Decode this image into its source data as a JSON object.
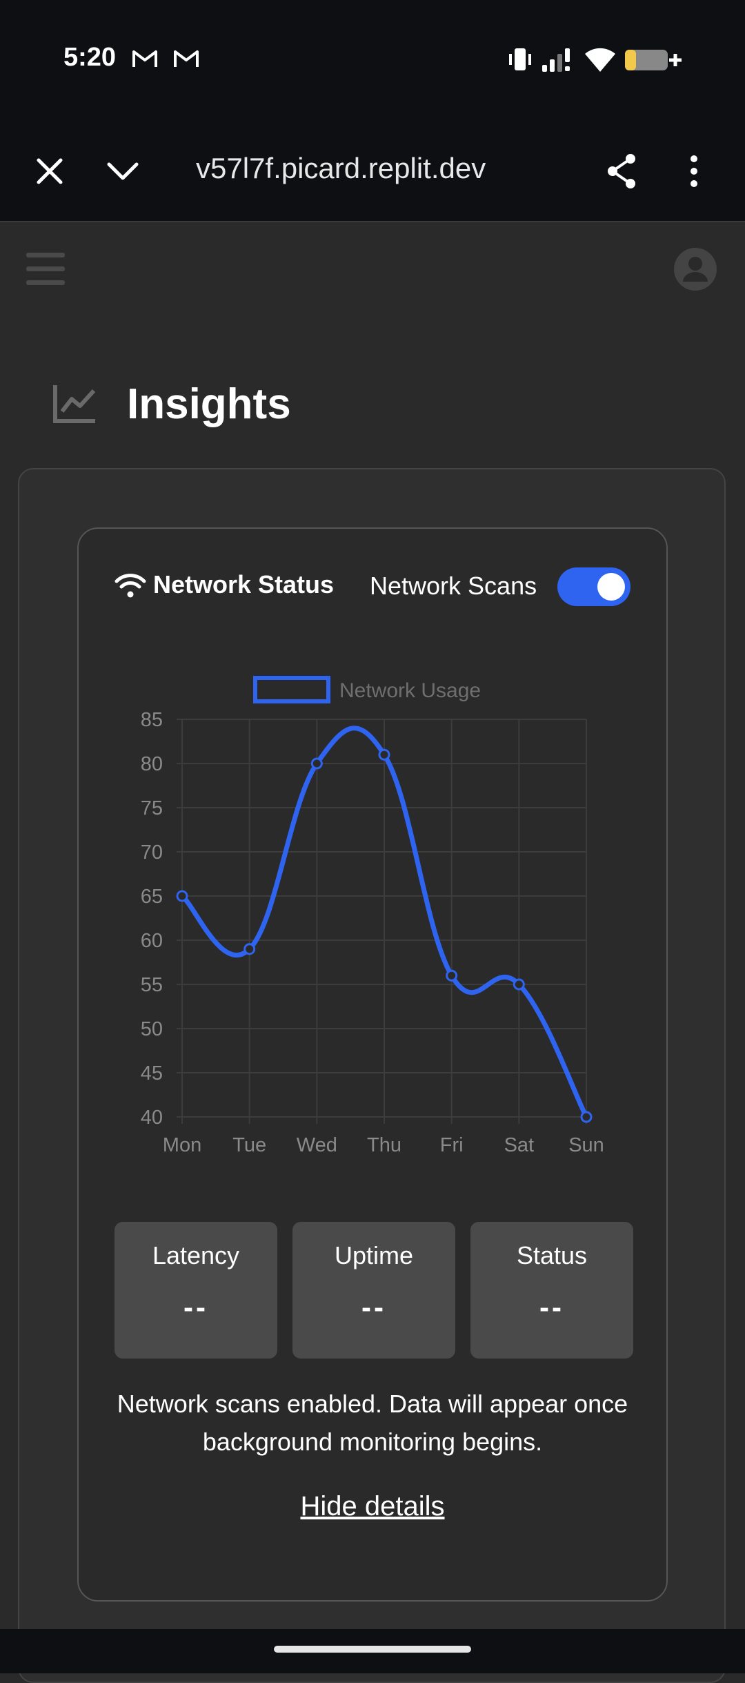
{
  "status_bar": {
    "time": "5:20",
    "icons": [
      "gmail-icon",
      "gmail-icon",
      "vibrate-icon",
      "signal-icon",
      "wifi-icon",
      "battery-icon"
    ]
  },
  "browser": {
    "url": "v57l7f.picard.replit.dev",
    "icons": [
      "close-icon",
      "chevron-down-icon",
      "share-icon",
      "more-vert-icon"
    ]
  },
  "page": {
    "title": "Insights",
    "title_icon": "chart-line-icon"
  },
  "card": {
    "title": "Network Status",
    "toggle_label": "Network Scans",
    "toggle_on": true,
    "accent_color": "#2f64f0"
  },
  "chart_data": {
    "type": "line",
    "categories": [
      "Mon",
      "Tue",
      "Wed",
      "Thu",
      "Fri",
      "Sat",
      "Sun"
    ],
    "series": [
      {
        "name": "Network Usage",
        "values": [
          65,
          59,
          80,
          81,
          56,
          55,
          40
        ],
        "color": "#2f64f0"
      }
    ],
    "ylim": [
      40,
      85
    ],
    "yticks": [
      40,
      45,
      50,
      55,
      60,
      65,
      70,
      75,
      80,
      85
    ],
    "legend": "top-center",
    "grid": true
  },
  "stats": [
    {
      "label": "Latency",
      "value": "--"
    },
    {
      "label": "Uptime",
      "value": "--"
    },
    {
      "label": "Status",
      "value": "--"
    }
  ],
  "info_text": "Network scans enabled. Data will appear once background monitoring begins.",
  "hide_link": "Hide details"
}
